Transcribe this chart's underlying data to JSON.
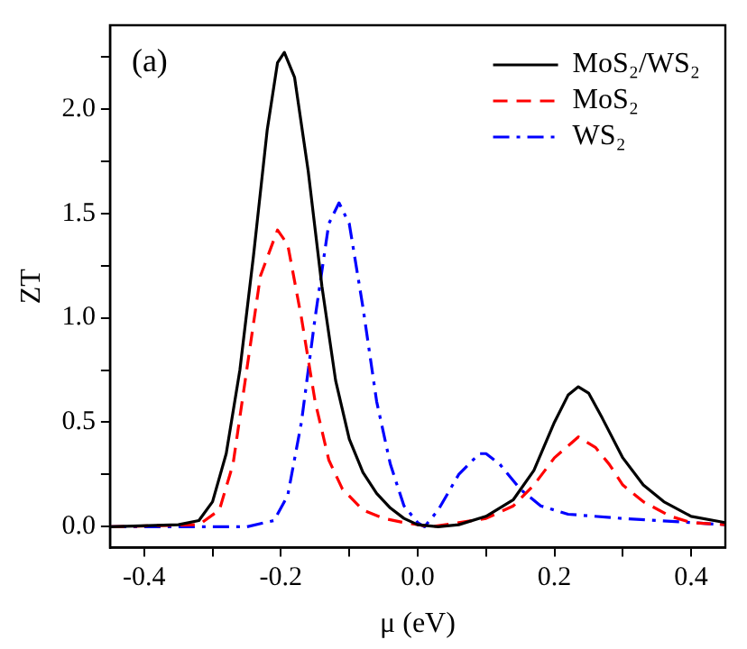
{
  "chart_data": {
    "type": "line",
    "xlabel": "μ (eV)",
    "ylabel": "ZT",
    "annotations": [
      "(a)"
    ],
    "xlim": [
      -0.45,
      0.45
    ],
    "ylim": [
      -0.1,
      2.4
    ],
    "xticks": [
      {
        "value": -0.4,
        "label": "-0.4"
      },
      {
        "value": -0.3,
        "label": null
      },
      {
        "value": -0.2,
        "label": "-0.2"
      },
      {
        "value": -0.1,
        "label": null
      },
      {
        "value": 0,
        "label": "0.0"
      },
      {
        "value": 0.1,
        "label": null
      },
      {
        "value": 0.2,
        "label": "0.2"
      },
      {
        "value": 0.3,
        "label": null
      },
      {
        "value": 0.4,
        "label": "0.4"
      }
    ],
    "yticks": [
      {
        "value": 0,
        "label": "0.0"
      },
      {
        "value": 0.25,
        "label": null
      },
      {
        "value": 0.5,
        "label": "0.5"
      },
      {
        "value": 0.75,
        "label": null
      },
      {
        "value": 1,
        "label": "1.0"
      },
      {
        "value": 1.25,
        "label": null
      },
      {
        "value": 1.5,
        "label": "1.5"
      },
      {
        "value": 1.75,
        "label": null
      },
      {
        "value": 2,
        "label": "2.0"
      },
      {
        "value": 2.25,
        "label": null
      }
    ],
    "grid": false,
    "legend": "top right",
    "marker": "none",
    "series": [
      {
        "name": "MoS₂/WS₂",
        "color": "#000000",
        "line_style": "solid",
        "x": [
          -0.45,
          -0.35,
          -0.32,
          -0.3,
          -0.28,
          -0.26,
          -0.24,
          -0.22,
          -0.205,
          -0.195,
          -0.18,
          -0.16,
          -0.14,
          -0.12,
          -0.1,
          -0.08,
          -0.06,
          -0.04,
          -0.02,
          0,
          0.03,
          0.06,
          0.1,
          0.14,
          0.17,
          0.2,
          0.22,
          0.235,
          0.25,
          0.27,
          0.3,
          0.33,
          0.36,
          0.4,
          0.45
        ],
        "values": [
          0,
          0.01,
          0.03,
          0.12,
          0.35,
          0.75,
          1.3,
          1.9,
          2.22,
          2.27,
          2.15,
          1.7,
          1.15,
          0.7,
          0.42,
          0.26,
          0.16,
          0.09,
          0.04,
          0.01,
          0,
          0.01,
          0.05,
          0.13,
          0.27,
          0.5,
          0.63,
          0.67,
          0.64,
          0.52,
          0.33,
          0.2,
          0.12,
          0.05,
          0.02
        ]
      },
      {
        "name": "MoS₂",
        "color": "#ff0000",
        "line_style": "dashed",
        "x": [
          -0.45,
          -0.32,
          -0.29,
          -0.27,
          -0.25,
          -0.23,
          -0.205,
          -0.19,
          -0.17,
          -0.15,
          -0.13,
          -0.11,
          -0.08,
          -0.05,
          -0.02,
          0.02,
          0.06,
          0.1,
          0.14,
          0.17,
          0.2,
          0.235,
          0.26,
          0.28,
          0.3,
          0.33,
          0.37,
          0.4,
          0.45
        ],
        "values": [
          0,
          0.01,
          0.08,
          0.3,
          0.75,
          1.2,
          1.42,
          1.35,
          1.0,
          0.6,
          0.32,
          0.18,
          0.08,
          0.04,
          0.02,
          0,
          0.02,
          0.04,
          0.1,
          0.2,
          0.33,
          0.43,
          0.38,
          0.3,
          0.2,
          0.12,
          0.05,
          0.02,
          0.01
        ]
      },
      {
        "name": "WS₂",
        "color": "#0000ff",
        "line_style": "dashdot",
        "x": [
          -0.45,
          -0.25,
          -0.21,
          -0.19,
          -0.17,
          -0.15,
          -0.13,
          -0.115,
          -0.1,
          -0.08,
          -0.06,
          -0.04,
          -0.02,
          0,
          0.01,
          0.03,
          0.06,
          0.09,
          0.1,
          0.12,
          0.15,
          0.18,
          0.22,
          0.3,
          0.4,
          0.45
        ],
        "values": [
          0,
          0,
          0.03,
          0.15,
          0.5,
          1.0,
          1.45,
          1.55,
          1.45,
          1.05,
          0.6,
          0.3,
          0.1,
          0.02,
          0,
          0.08,
          0.25,
          0.35,
          0.35,
          0.3,
          0.18,
          0.1,
          0.06,
          0.04,
          0.02,
          0.01
        ]
      }
    ]
  }
}
